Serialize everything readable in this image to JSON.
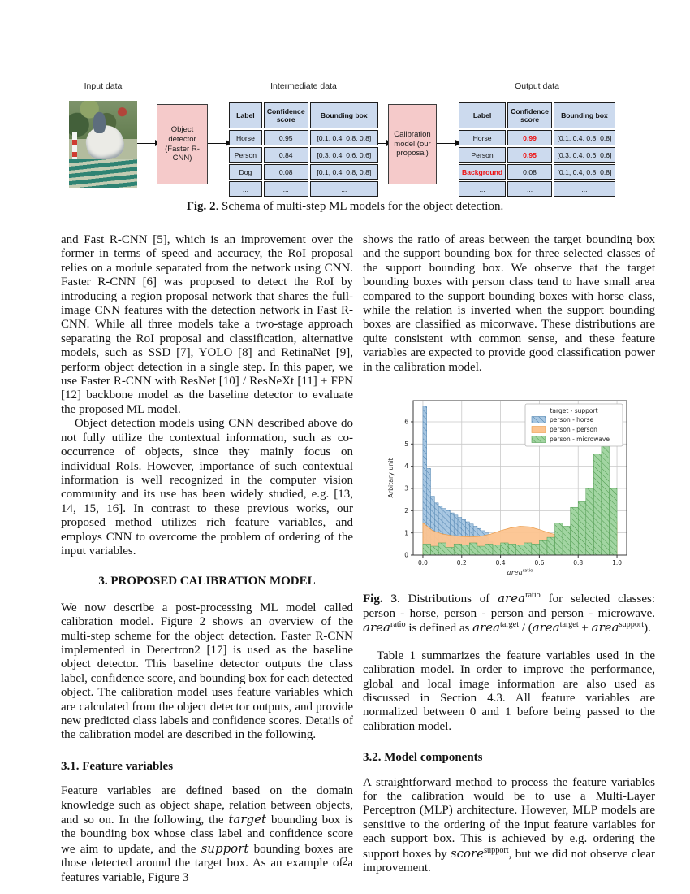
{
  "page": {
    "number": "2"
  },
  "figure2": {
    "labels": {
      "input": "Input data",
      "intermediate": "Intermediate data",
      "output": "Output data"
    },
    "detector_box": "Object detector (Faster R-CNN)",
    "calibration_box": "Calibration model (our proposal)",
    "intermediate_table": {
      "headers": [
        "Label",
        "Confidence score",
        "Bounding box"
      ],
      "rows": [
        [
          "Horse",
          "0.95",
          "[0.1, 0.4, 0.8, 0.8]"
        ],
        [
          "Person",
          "0.84",
          "[0.3, 0.4, 0.6, 0.6]"
        ],
        [
          "Dog",
          "0.08",
          "[0.1, 0.4, 0.8, 0.8]"
        ],
        [
          "...",
          "...",
          "..."
        ]
      ]
    },
    "output_table": {
      "headers": [
        "Label",
        "Confidence score",
        "Bounding box"
      ],
      "rows": [
        [
          "Horse",
          {
            "t": "0.99",
            "red": true
          },
          "[0.1, 0.4, 0.8, 0.8]"
        ],
        [
          "Person",
          {
            "t": "0.95",
            "red": true
          },
          "[0.3, 0.4, 0.6, 0.6]"
        ],
        [
          {
            "t": "Background",
            "red": true
          },
          "0.08",
          "[0.1, 0.4, 0.8, 0.8]"
        ],
        [
          "...",
          "...",
          "..."
        ]
      ]
    },
    "caption": [
      {
        "t": "Fig. 2",
        "bold": true
      },
      {
        "t": ". Schema of multi-step ML models for the object detection."
      }
    ]
  },
  "left_column": {
    "para_a": "and Fast R-CNN [5], which is an improvement over the former in terms of speed and accuracy, the RoI proposal relies on a module separated from the network using CNN. Faster R-CNN [6] was proposed to detect the RoI by introducing a region proposal network that shares the full-image CNN features with the detection network in Fast R-CNN. While all three models take a two-stage approach separating the RoI proposal and classification, alternative models, such as SSD [7], YOLO [8] and RetinaNet [9], perform object detection in a single step. In this paper, we use Faster R-CNN with ResNet [10] / ResNeXt [11] + FPN [12] backbone model as the baseline detector to evaluate the proposed ML model.",
    "para_b": "Object detection models using CNN described above do not fully utilize the contextual information, such as co-occurrence of objects, since they mainly focus on individual RoIs. However, importance of such contextual information is well recognized in the computer vision community and its use has been widely studied, e.g. [13, 14, 15, 16]. In contrast to these previous works, our proposed method utilizes rich feature variables, and employs CNN to overcome the problem of ordering of the input variables.",
    "section_heading": "3. PROPOSED CALIBRATION MODEL",
    "para_c": "We now describe a post-processing ML model called calibration model. Figure 2 shows an overview of the multi-step scheme for the object detection. Faster R-CNN implemented in Detectron2 [17] is used as the baseline object detector. This baseline detector outputs the class label, confidence score, and bounding box for each detected object. The calibration model uses feature variables which are calculated from the object detector outputs, and provide new predicted class labels and confidence scores. Details of the calibration model are described in the following.",
    "sub_heading_31": "3.1. Feature variables",
    "para_d": [
      {
        "t": "Feature variables are defined based on the domain knowledge such as object shape, relation between objects, and so on. In the following, the "
      },
      {
        "t": "target",
        "math": true
      },
      {
        "t": " bounding box is the bounding box whose class label and confidence score we aim to update, and the "
      },
      {
        "t": "support",
        "math": true
      },
      {
        "t": " bounding boxes are those detected around the target box. As an example of a features variable, Figure 3"
      }
    ]
  },
  "right_column": {
    "para_e": "shows the ratio of areas between the target bounding box and the support bounding box for three selected classes of the support bounding box. We observe that the target bounding boxes with person class tend to have small area compared to the support bounding boxes with horse class, while the relation is inverted when the support bounding boxes are classified as micorwave. These distributions are quite consistent with common sense, and these feature variables are expected to provide good classification power in the calibration model.",
    "fig3_caption": [
      {
        "t": "Fig. 3",
        "bold": true
      },
      {
        "t": ". Distributions of "
      },
      {
        "t": "area",
        "math": true
      },
      {
        "t": "ratio",
        "sup": true
      },
      {
        "t": " for selected classes: person - horse, person - person and person - microwave. "
      },
      {
        "t": "area",
        "math": true
      },
      {
        "t": "ratio",
        "sup": true
      },
      {
        "t": " is defined as "
      },
      {
        "t": "area",
        "math": true
      },
      {
        "t": "target",
        "sup": true
      },
      {
        "t": " / ("
      },
      {
        "t": "area",
        "math": true
      },
      {
        "t": "target",
        "sup": true
      },
      {
        "t": " + "
      },
      {
        "t": "area",
        "math": true
      },
      {
        "t": "support",
        "sup": true
      },
      {
        "t": ")."
      }
    ],
    "para_f": "Table 1 summarizes the feature variables used in the calibration model. In order to improve the performance, global and local image information are also used as discussed in Section 4.3. All feature variables are normalized between 0 and 1 before being passed to the calibration model.",
    "sub_heading_32": "3.2. Model components",
    "para_g": [
      {
        "t": "A straightforward method to process the feature variables for the calibration would be to use a Multi-Layer Perceptron (MLP) architecture. However, MLP models are sensitive to the ordering of the input feature variables for each support box. This is achieved by e.g.  ordering the support boxes by "
      },
      {
        "t": "score",
        "math": true
      },
      {
        "t": "support",
        "sup": true
      },
      {
        "t": ", but we did not observe clear improvement."
      }
    ]
  },
  "chart_data": {
    "type": "histogram",
    "legend_title": "target - support",
    "legend_position": "upper right",
    "ylabel": "Arbitary unit",
    "xlabel_segments": [
      {
        "t": "area",
        "math": true
      },
      {
        "t": "ratio",
        "sup": true
      }
    ],
    "xlim": [
      -0.05,
      1.05
    ],
    "ylim": [
      0,
      6.95
    ],
    "xticks": [
      0.0,
      0.2,
      0.4,
      0.6,
      0.8,
      1.0
    ],
    "yticks": [
      0,
      1,
      2,
      3,
      4,
      5,
      6
    ],
    "grid": true,
    "series": [
      {
        "name": "person - horse",
        "kind": "hist",
        "hatch": true,
        "color": "#a8c7e2",
        "edge": "#4f83b0",
        "bin_start": 0.0,
        "bin_width": 0.02,
        "values": [
          6.7,
          3.9,
          2.65,
          2.35,
          2.2,
          2.1,
          2.0,
          1.9,
          1.8,
          1.7,
          1.6,
          1.5,
          1.4,
          1.3,
          1.2,
          1.1,
          1.0,
          0.6,
          0.25
        ]
      },
      {
        "name": "person - person",
        "kind": "area",
        "hatch": false,
        "color": "#fcc490",
        "edge": "#ea9a47",
        "x": [
          0,
          0.05,
          0.1,
          0.15,
          0.2,
          0.25,
          0.3,
          0.35,
          0.4,
          0.45,
          0.5,
          0.55,
          0.6,
          0.65,
          0.7,
          0.75,
          0.8,
          0.85,
          0.9,
          0.95,
          1.0
        ],
        "y": [
          1.45,
          1.1,
          0.95,
          0.88,
          0.84,
          0.82,
          0.85,
          0.95,
          1.1,
          1.22,
          1.3,
          1.27,
          1.15,
          1.0,
          0.88,
          0.82,
          0.8,
          0.85,
          0.9,
          1.05,
          1.5
        ]
      },
      {
        "name": "person - microwave",
        "kind": "hist",
        "hatch": true,
        "color": "#a2d5a2",
        "edge": "#4e9a4e",
        "bin_start": 0.0,
        "bin_width": 0.04,
        "values": [
          0.5,
          0.4,
          0.55,
          0.35,
          0.5,
          0.45,
          0.55,
          0.4,
          0.5,
          0.45,
          0.55,
          0.5,
          0.45,
          0.55,
          0.5,
          0.65,
          0.8,
          1.45,
          1.3,
          2.15,
          2.4,
          3.0,
          4.55,
          4.9,
          3.0
        ]
      }
    ]
  }
}
